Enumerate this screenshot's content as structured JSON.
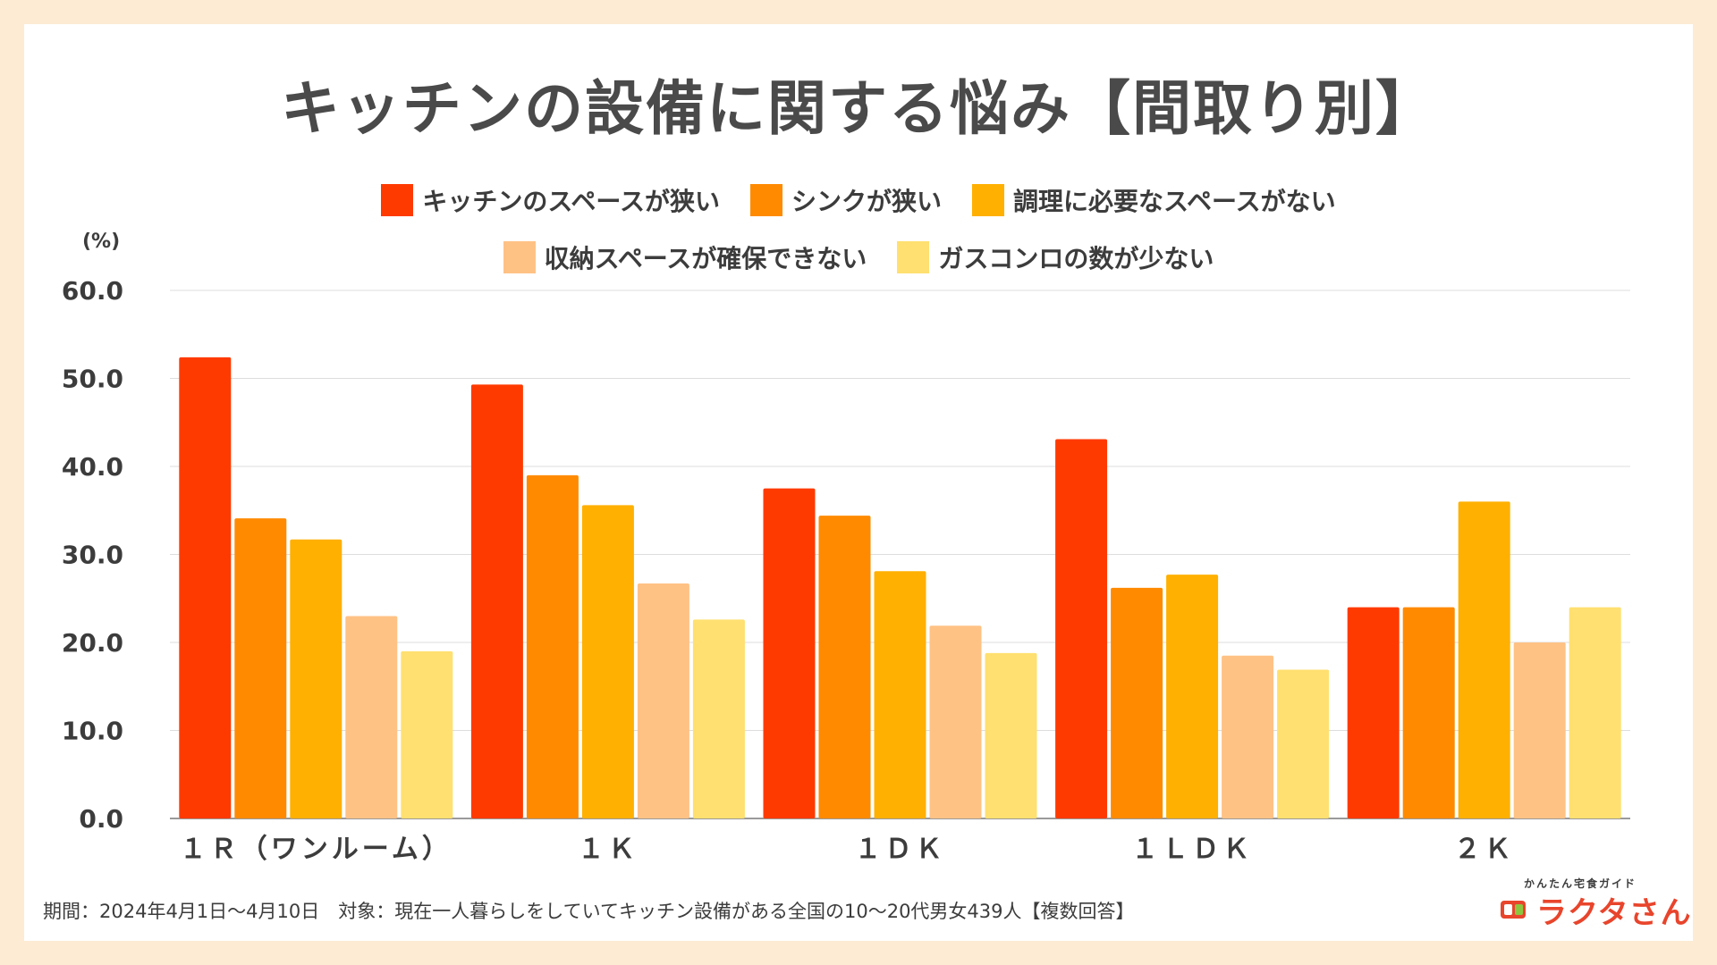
{
  "title": "キッチンの設備に関する悩み【間取り別】",
  "unit_label": "(%)",
  "footnote": "期間：2024年4月1日～4月10日　対象：現在一人暮らしをしていてキッチン設備がある全国の10～20代男女439人【複数回答】",
  "logo": {
    "sub": "かんたん宅食ガイド",
    "main": "ラクタさん"
  },
  "colors": {
    "background": "#fdebd3",
    "series": [
      "#ff3a00",
      "#ff8a00",
      "#ffb000",
      "#ffc285",
      "#ffe070"
    ]
  },
  "chart_data": {
    "type": "bar",
    "title": "キッチンの設備に関する悩み【間取り別】",
    "categories": [
      "１Ｒ（ワンルーム）",
      "１Ｋ",
      "１ＤＫ",
      "１ＬＤＫ",
      "２Ｋ"
    ],
    "series": [
      {
        "name": "キッチンのスペースが狭い",
        "values": [
          52.4,
          49.3,
          37.5,
          43.1,
          24.0
        ]
      },
      {
        "name": "シンクが狭い",
        "values": [
          34.1,
          39.0,
          34.4,
          26.2,
          24.0
        ]
      },
      {
        "name": "調理に必要なスペースがない",
        "values": [
          31.7,
          35.6,
          28.1,
          27.7,
          36.0
        ]
      },
      {
        "name": "収納スペースが確保できない",
        "values": [
          23.0,
          26.7,
          21.9,
          18.5,
          20.0
        ]
      },
      {
        "name": "ガスコンロの数が少ない",
        "values": [
          19.0,
          22.6,
          18.8,
          16.9,
          24.0
        ]
      }
    ],
    "ylim": [
      0,
      60
    ],
    "yticks": [
      "0.0",
      "10.0",
      "20.0",
      "30.0",
      "40.0",
      "50.0",
      "60.0"
    ],
    "ylabel": "(%)",
    "xlabel": "",
    "grid": true,
    "legend_position": "top"
  }
}
